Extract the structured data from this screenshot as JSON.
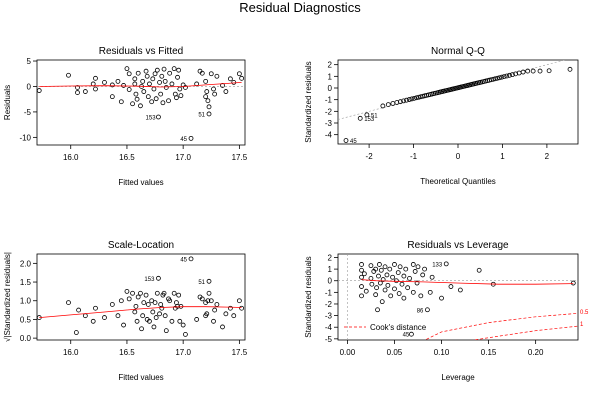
{
  "title": "Residual Diagnostics",
  "chart_data": [
    {
      "type": "scatter",
      "title": "Residuals vs Fitted",
      "xlabel": "Fitted values",
      "ylabel": "Residuals",
      "xlim": [
        15.7,
        17.55
      ],
      "ylim": [
        -11.5,
        5.2
      ],
      "xticks": [
        16.0,
        16.5,
        17.0,
        17.5
      ],
      "yticks": [
        -10,
        -5,
        0,
        5
      ],
      "xtick_labels": [
        "16.0",
        "16.5",
        "17.0",
        "17.5"
      ],
      "ytick_labels": [
        "-10",
        "-5",
        "0",
        "5"
      ],
      "smoother": [
        [
          15.72,
          0.0
        ],
        [
          16.0,
          0.1
        ],
        [
          16.3,
          0.15
        ],
        [
          16.6,
          0.05
        ],
        [
          16.8,
          -0.1
        ],
        [
          17.0,
          0.0
        ],
        [
          17.2,
          0.3
        ],
        [
          17.4,
          0.6
        ],
        [
          17.52,
          0.8
        ]
      ],
      "refline": 0,
      "point_labels": [
        {
          "x": 16.79,
          "y": -6.0,
          "text": "153"
        },
        {
          "x": 17.23,
          "y": -5.4,
          "text": "51"
        },
        {
          "x": 17.07,
          "y": -10.2,
          "text": "45"
        }
      ],
      "points": [
        [
          15.72,
          -0.8
        ],
        [
          15.98,
          2.2
        ],
        [
          16.06,
          -0.2
        ],
        [
          16.06,
          -1.2
        ],
        [
          16.13,
          -1.0
        ],
        [
          16.2,
          0.5
        ],
        [
          16.22,
          1.6
        ],
        [
          16.22,
          -0.5
        ],
        [
          16.3,
          0.8
        ],
        [
          16.37,
          -2.0
        ],
        [
          16.37,
          0.3
        ],
        [
          16.42,
          1.0
        ],
        [
          16.45,
          -3.0
        ],
        [
          16.47,
          0.2
        ],
        [
          16.5,
          3.5
        ],
        [
          16.52,
          2.5
        ],
        [
          16.52,
          -0.6
        ],
        [
          16.55,
          -3.4
        ],
        [
          16.57,
          1.5
        ],
        [
          16.57,
          0.5
        ],
        [
          16.58,
          -1.5
        ],
        [
          16.59,
          -2.5
        ],
        [
          16.6,
          2.6
        ],
        [
          16.62,
          -3.8
        ],
        [
          16.63,
          0.0
        ],
        [
          16.64,
          1.0
        ],
        [
          16.65,
          -1.0
        ],
        [
          16.67,
          3.0
        ],
        [
          16.68,
          2.0
        ],
        [
          16.69,
          -2.0
        ],
        [
          16.7,
          0.5
        ],
        [
          16.72,
          -3.0
        ],
        [
          16.73,
          1.5
        ],
        [
          16.74,
          -0.5
        ],
        [
          16.75,
          2.5
        ],
        [
          16.76,
          -2.4
        ],
        [
          16.77,
          3.2
        ],
        [
          16.78,
          -6.0
        ],
        [
          16.79,
          0.8
        ],
        [
          16.8,
          -1.5
        ],
        [
          16.81,
          2.0
        ],
        [
          16.82,
          -3.2
        ],
        [
          16.83,
          3.4
        ],
        [
          16.84,
          1.0
        ],
        [
          16.85,
          -0.2
        ],
        [
          16.87,
          -2.8
        ],
        [
          16.88,
          2.6
        ],
        [
          16.9,
          0.5
        ],
        [
          16.92,
          3.5
        ],
        [
          16.93,
          -1.5
        ],
        [
          16.94,
          -2.2
        ],
        [
          16.95,
          1.8
        ],
        [
          16.96,
          3.2
        ],
        [
          16.97,
          -0.5
        ],
        [
          16.98,
          -1.8
        ],
        [
          17.0,
          0.3
        ],
        [
          17.02,
          -0.2
        ],
        [
          17.07,
          -10.2
        ],
        [
          17.12,
          0.5
        ],
        [
          17.15,
          3.0
        ],
        [
          17.17,
          2.6
        ],
        [
          17.2,
          1.0
        ],
        [
          17.2,
          -2.0
        ],
        [
          17.21,
          -1.0
        ],
        [
          17.22,
          -2.8
        ],
        [
          17.23,
          -4.0
        ],
        [
          17.23,
          -5.4
        ],
        [
          17.25,
          2.5
        ],
        [
          17.27,
          -0.5
        ],
        [
          17.28,
          -1.5
        ],
        [
          17.3,
          2.0
        ],
        [
          17.35,
          0.2
        ],
        [
          17.38,
          -1.0
        ],
        [
          17.42,
          1.5
        ],
        [
          17.45,
          0.8
        ],
        [
          17.5,
          2.5
        ],
        [
          17.52,
          1.6
        ]
      ]
    },
    {
      "type": "scatter",
      "title": "Normal Q-Q",
      "xlabel": "Theoretical Quantiles",
      "ylabel": "Standardized residuals",
      "xlim": [
        -2.7,
        2.7
      ],
      "ylim": [
        -4.8,
        2.4
      ],
      "xticks": [
        -2,
        -1,
        0,
        1,
        2
      ],
      "yticks": [
        -4,
        -3,
        -2,
        -1,
        0,
        1,
        2
      ],
      "xtick_labels": [
        "-2",
        "-1",
        "0",
        "1",
        "2"
      ],
      "ytick_labels": [
        "-4",
        "-3",
        "-2",
        "-1",
        "0",
        "1",
        "2"
      ],
      "refline_xy": [
        [
          -2.7,
          -2.7
        ],
        [
          2.7,
          2.7
        ]
      ],
      "n_points": 77,
      "tail_low_x": [
        -2.52,
        -2.2,
        -2.05
      ],
      "tail_low_y": [
        -4.5,
        -2.6,
        -2.3
      ],
      "tail_high_x": [
        2.05,
        2.52
      ],
      "tail_high_y": [
        1.48,
        1.6
      ],
      "clamp": [
        -2.15,
        1.45
      ],
      "point_labels": [
        {
          "x": -2.52,
          "y": -4.5,
          "text": "45"
        },
        {
          "x": -2.2,
          "y": -2.6,
          "text": "153"
        },
        {
          "x": -2.05,
          "y": -2.3,
          "text": "51"
        }
      ]
    },
    {
      "type": "scatter",
      "title": "Scale-Location",
      "xlabel": "Fitted values",
      "ylabel": "√|Standardized residuals|",
      "xlim": [
        15.7,
        17.55
      ],
      "ylim": [
        -0.05,
        2.25
      ],
      "xticks": [
        16.0,
        16.5,
        17.0,
        17.5
      ],
      "yticks": [
        0.0,
        0.5,
        1.0,
        1.5,
        2.0
      ],
      "xtick_labels": [
        "16.0",
        "16.5",
        "17.0",
        "17.5"
      ],
      "ytick_labels": [
        "0.0",
        "0.5",
        "1.0",
        "1.5",
        "2.0"
      ],
      "smoother": [
        [
          15.72,
          0.55
        ],
        [
          16.0,
          0.62
        ],
        [
          16.3,
          0.7
        ],
        [
          16.6,
          0.78
        ],
        [
          16.8,
          0.82
        ],
        [
          17.0,
          0.84
        ],
        [
          17.2,
          0.84
        ],
        [
          17.4,
          0.83
        ],
        [
          17.52,
          0.82
        ]
      ],
      "point_labels": [
        {
          "x": 17.07,
          "y": 2.12,
          "text": "45"
        },
        {
          "x": 16.78,
          "y": 1.6,
          "text": "153"
        },
        {
          "x": 17.23,
          "y": 1.52,
          "text": "51"
        }
      ],
      "points": [
        [
          15.72,
          0.55
        ],
        [
          15.98,
          0.95
        ],
        [
          16.05,
          0.15
        ],
        [
          16.07,
          0.75
        ],
        [
          16.13,
          0.6
        ],
        [
          16.2,
          0.45
        ],
        [
          16.22,
          0.8
        ],
        [
          16.3,
          0.55
        ],
        [
          16.37,
          0.9
        ],
        [
          16.42,
          0.6
        ],
        [
          16.45,
          1.0
        ],
        [
          16.47,
          0.35
        ],
        [
          16.5,
          1.25
        ],
        [
          16.52,
          1.05
        ],
        [
          16.55,
          1.2
        ],
        [
          16.57,
          0.7
        ],
        [
          16.58,
          0.85
        ],
        [
          16.59,
          0.45
        ],
        [
          16.6,
          1.1
        ],
        [
          16.62,
          1.2
        ],
        [
          16.63,
          0.25
        ],
        [
          16.64,
          0.6
        ],
        [
          16.65,
          0.95
        ],
        [
          16.67,
          1.15
        ],
        [
          16.68,
          0.5
        ],
        [
          16.69,
          0.9
        ],
        [
          16.7,
          0.45
        ],
        [
          16.72,
          1.0
        ],
        [
          16.73,
          0.7
        ],
        [
          16.74,
          0.3
        ],
        [
          16.75,
          0.95
        ],
        [
          16.76,
          0.55
        ],
        [
          16.77,
          1.2
        ],
        [
          16.78,
          1.6
        ],
        [
          16.79,
          0.65
        ],
        [
          16.8,
          0.9
        ],
        [
          16.81,
          0.8
        ],
        [
          16.82,
          1.15
        ],
        [
          16.83,
          1.2
        ],
        [
          16.84,
          0.6
        ],
        [
          16.85,
          0.2
        ],
        [
          16.87,
          1.05
        ],
        [
          16.88,
          1.0
        ],
        [
          16.9,
          0.45
        ],
        [
          16.92,
          1.2
        ],
        [
          16.93,
          0.8
        ],
        [
          16.94,
          0.95
        ],
        [
          16.95,
          0.85
        ],
        [
          16.96,
          1.15
        ],
        [
          16.97,
          0.45
        ],
        [
          16.98,
          0.85
        ],
        [
          17.0,
          0.35
        ],
        [
          17.02,
          0.1
        ],
        [
          17.07,
          2.12
        ],
        [
          17.12,
          0.5
        ],
        [
          17.15,
          1.1
        ],
        [
          17.17,
          1.05
        ],
        [
          17.2,
          0.6
        ],
        [
          17.2,
          0.95
        ],
        [
          17.21,
          0.65
        ],
        [
          17.22,
          1.0
        ],
        [
          17.23,
          1.2
        ],
        [
          17.23,
          1.52
        ],
        [
          17.25,
          1.0
        ],
        [
          17.27,
          0.45
        ],
        [
          17.28,
          0.75
        ],
        [
          17.3,
          0.9
        ],
        [
          17.35,
          0.3
        ],
        [
          17.38,
          0.65
        ],
        [
          17.42,
          0.8
        ],
        [
          17.45,
          0.6
        ],
        [
          17.5,
          1.0
        ],
        [
          17.52,
          0.8
        ]
      ]
    },
    {
      "type": "scatter",
      "title": "Residuals vs Leverage",
      "xlabel": "Leverage",
      "ylabel": "Standardized residuals",
      "xlim": [
        -0.01,
        0.245
      ],
      "ylim": [
        -5.1,
        2.3
      ],
      "xticks": [
        0.0,
        0.05,
        0.1,
        0.15,
        0.2
      ],
      "yticks": [
        -5,
        -4,
        -3,
        -2,
        -1,
        0,
        1,
        2
      ],
      "xtick_labels": [
        "0.00",
        "0.05",
        "0.10",
        "0.15",
        "0.20"
      ],
      "ytick_labels": [
        "-5",
        "-4",
        "-3",
        "-2",
        "-1",
        "0",
        "1",
        "2"
      ],
      "legend": "Cook's distance",
      "cook_labels": [
        "0.5",
        "1"
      ],
      "cook_curves": [
        [
          [
            0.06,
            -6.0
          ],
          [
            0.1,
            -4.4
          ],
          [
            0.15,
            -3.6
          ],
          [
            0.2,
            -3.1
          ],
          [
            0.245,
            -2.8
          ]
        ],
        [
          [
            0.12,
            -5.3
          ],
          [
            0.15,
            -4.9
          ],
          [
            0.2,
            -4.3
          ],
          [
            0.245,
            -3.9
          ]
        ]
      ],
      "smoother": [
        [
          0.015,
          0.1
        ],
        [
          0.03,
          0.0
        ],
        [
          0.05,
          -0.05
        ],
        [
          0.08,
          -0.1
        ],
        [
          0.12,
          -0.2
        ],
        [
          0.16,
          -0.3
        ],
        [
          0.2,
          -0.3
        ],
        [
          0.24,
          -0.25
        ]
      ],
      "point_labels": [
        {
          "x": 0.105,
          "y": 1.45,
          "text": "133"
        },
        {
          "x": 0.07,
          "y": -4.6,
          "text": "45"
        },
        {
          "x": 0.085,
          "y": -2.5,
          "text": "86"
        }
      ],
      "points": [
        [
          0.015,
          1.4
        ],
        [
          0.015,
          0.9
        ],
        [
          0.015,
          0.3
        ],
        [
          0.015,
          -0.5
        ],
        [
          0.015,
          -1.3
        ],
        [
          0.018,
          0.6
        ],
        [
          0.02,
          -0.9
        ],
        [
          0.025,
          1.3
        ],
        [
          0.025,
          0.2
        ],
        [
          0.026,
          -0.3
        ],
        [
          0.028,
          0.8
        ],
        [
          0.03,
          1.0
        ],
        [
          0.03,
          -1.2
        ],
        [
          0.031,
          -0.6
        ],
        [
          0.032,
          -2.5
        ],
        [
          0.033,
          0.4
        ],
        [
          0.034,
          1.4
        ],
        [
          0.035,
          -0.2
        ],
        [
          0.036,
          0.9
        ],
        [
          0.037,
          -1.8
        ],
        [
          0.038,
          0.1
        ],
        [
          0.04,
          1.2
        ],
        [
          0.04,
          -0.8
        ],
        [
          0.042,
          0.5
        ],
        [
          0.043,
          -0.4
        ],
        [
          0.045,
          1.0
        ],
        [
          0.046,
          -1.3
        ],
        [
          0.048,
          0.3
        ],
        [
          0.05,
          -0.7
        ],
        [
          0.05,
          1.4
        ],
        [
          0.052,
          0.0
        ],
        [
          0.054,
          0.7
        ],
        [
          0.055,
          -1.1
        ],
        [
          0.056,
          1.2
        ],
        [
          0.058,
          -0.3
        ],
        [
          0.06,
          0.4
        ],
        [
          0.06,
          -1.5
        ],
        [
          0.062,
          1.0
        ],
        [
          0.064,
          -0.6
        ],
        [
          0.066,
          0.2
        ],
        [
          0.068,
          -4.6
        ],
        [
          0.07,
          1.4
        ],
        [
          0.07,
          -1.0
        ],
        [
          0.072,
          0.8
        ],
        [
          0.074,
          -0.2
        ],
        [
          0.075,
          1.2
        ],
        [
          0.078,
          -1.3
        ],
        [
          0.08,
          0.5
        ],
        [
          0.082,
          1.0
        ],
        [
          0.085,
          -2.5
        ],
        [
          0.088,
          -1.0
        ],
        [
          0.09,
          0.3
        ],
        [
          0.1,
          -1.5
        ],
        [
          0.105,
          1.45
        ],
        [
          0.11,
          -0.5
        ],
        [
          0.12,
          -0.8
        ],
        [
          0.14,
          0.9
        ],
        [
          0.155,
          -0.3
        ],
        [
          0.24,
          -0.2
        ]
      ]
    }
  ]
}
